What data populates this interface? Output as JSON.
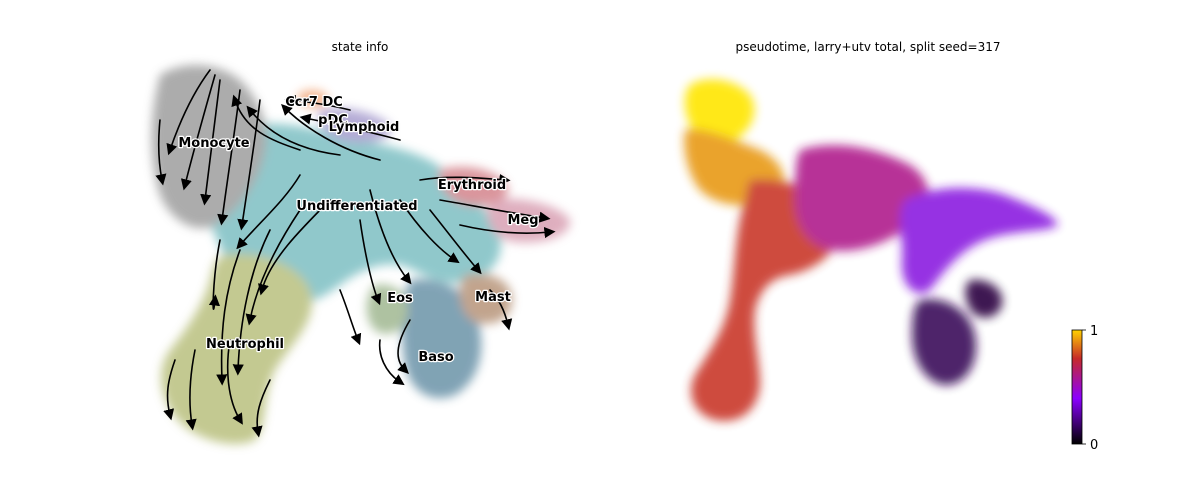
{
  "chart_data": [
    {
      "type": "scatter",
      "subtype": "umap-embedding-with-velocity-streamlines",
      "title": "state info",
      "axes_visible": false,
      "grid": false,
      "legend": "on-data",
      "clusters": [
        {
          "name": "Monocyte",
          "color": "#9e9e9e"
        },
        {
          "name": "Ccr7_DC",
          "color": "#f2a77a"
        },
        {
          "name": "pDC",
          "color": "#c6a9d6"
        },
        {
          "name": "Lymphoid",
          "color": "#a89ecf"
        },
        {
          "name": "Erythroid",
          "color": "#d4848c"
        },
        {
          "name": "Undifferentiated",
          "color": "#7dbfc3"
        },
        {
          "name": "Meg",
          "color": "#d9a0b3"
        },
        {
          "name": "Eos",
          "color": "#a0b891"
        },
        {
          "name": "Mast",
          "color": "#b8957a"
        },
        {
          "name": "Neutrophil",
          "color": "#b9c07e"
        },
        {
          "name": "Baso",
          "color": "#6b93a8"
        }
      ],
      "label_texts": {
        "monocyte": "Monocyte",
        "ccr7": "Ccr7 DC",
        "pdc": "pDC",
        "lymphoid": "Lymphoid",
        "erythroid": "Erythroid",
        "undiff": "Undifferentiated",
        "meg": "Meg",
        "eos": "Eos",
        "mast": "Mast",
        "neutrophil": "Neutrophil",
        "baso": "Baso"
      }
    },
    {
      "type": "scatter",
      "subtype": "umap-embedding-colored-by-pseudotime",
      "title": "pseudotime, larry+utv total, split seed=317",
      "axes_visible": false,
      "grid": false,
      "colormap": "gnuplot",
      "colormap_stops": [
        "#000000",
        "#8b00ff",
        "#c62a2a",
        "#ffd200"
      ],
      "colorbar": {
        "min": 0,
        "max": 1,
        "ticks": [
          0,
          1
        ],
        "tick_labels": [
          "0",
          "1"
        ],
        "placement": "bottom-right"
      }
    }
  ]
}
